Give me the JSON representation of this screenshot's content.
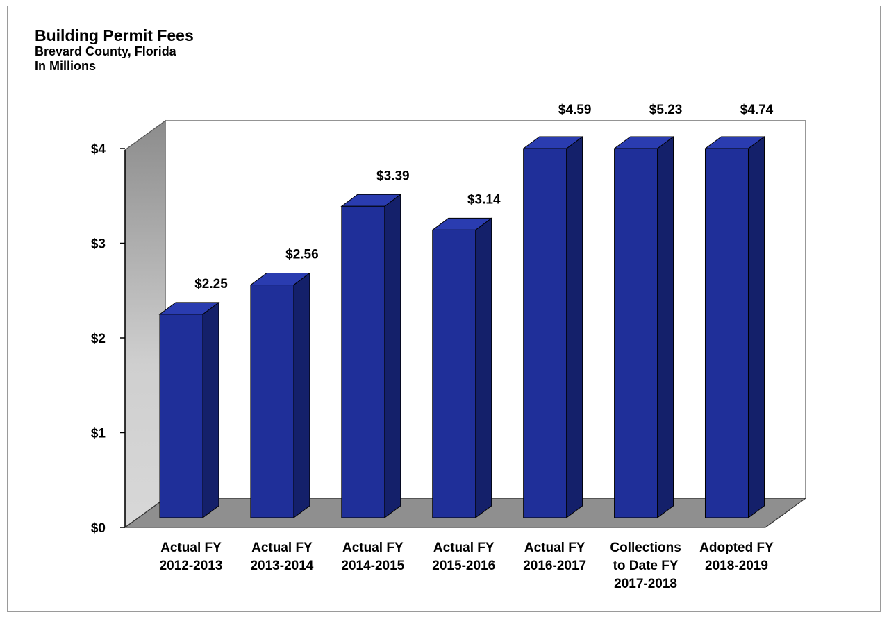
{
  "chart_data": {
    "type": "bar",
    "title": "Building Permit Fees",
    "subtitle_lines": [
      "Brevard County, Florida",
      "In Millions"
    ],
    "categories": [
      [
        "Actual FY",
        "2012-2013"
      ],
      [
        "Actual FY",
        "2013-2014"
      ],
      [
        "Actual FY",
        "2014-2015"
      ],
      [
        "Actual FY",
        "2015-2016"
      ],
      [
        "Actual FY",
        "2016-2017"
      ],
      [
        "Collections",
        "to Date FY",
        "2017-2018"
      ],
      [
        "Adopted FY",
        "2018-2019"
      ]
    ],
    "values": [
      2.25,
      2.56,
      3.39,
      3.14,
      4.59,
      5.23,
      4.74
    ],
    "plotted_values": [
      2.25,
      2.56,
      3.39,
      3.14,
      4.0,
      4.0,
      4.0
    ],
    "data_labels": [
      "$2.25",
      "$2.56",
      "$3.39",
      "$3.14",
      "$4.59",
      "$5.23",
      "$4.74"
    ],
    "y_ticks": [
      0,
      1,
      2,
      3,
      4
    ],
    "y_tick_labels": [
      "$0",
      "$1",
      "$2",
      "$3",
      "$4"
    ],
    "ylim": [
      0,
      4
    ],
    "style": "3d-column",
    "grid": false,
    "legend": "none",
    "colors": {
      "bar_front": "#1f2f99",
      "bar_side": "#14206a",
      "bar_top": "#2a3cb0",
      "wall": "#ffffff",
      "side_wall": "#a9a9a9",
      "floor": "#8f8f8f"
    }
  }
}
